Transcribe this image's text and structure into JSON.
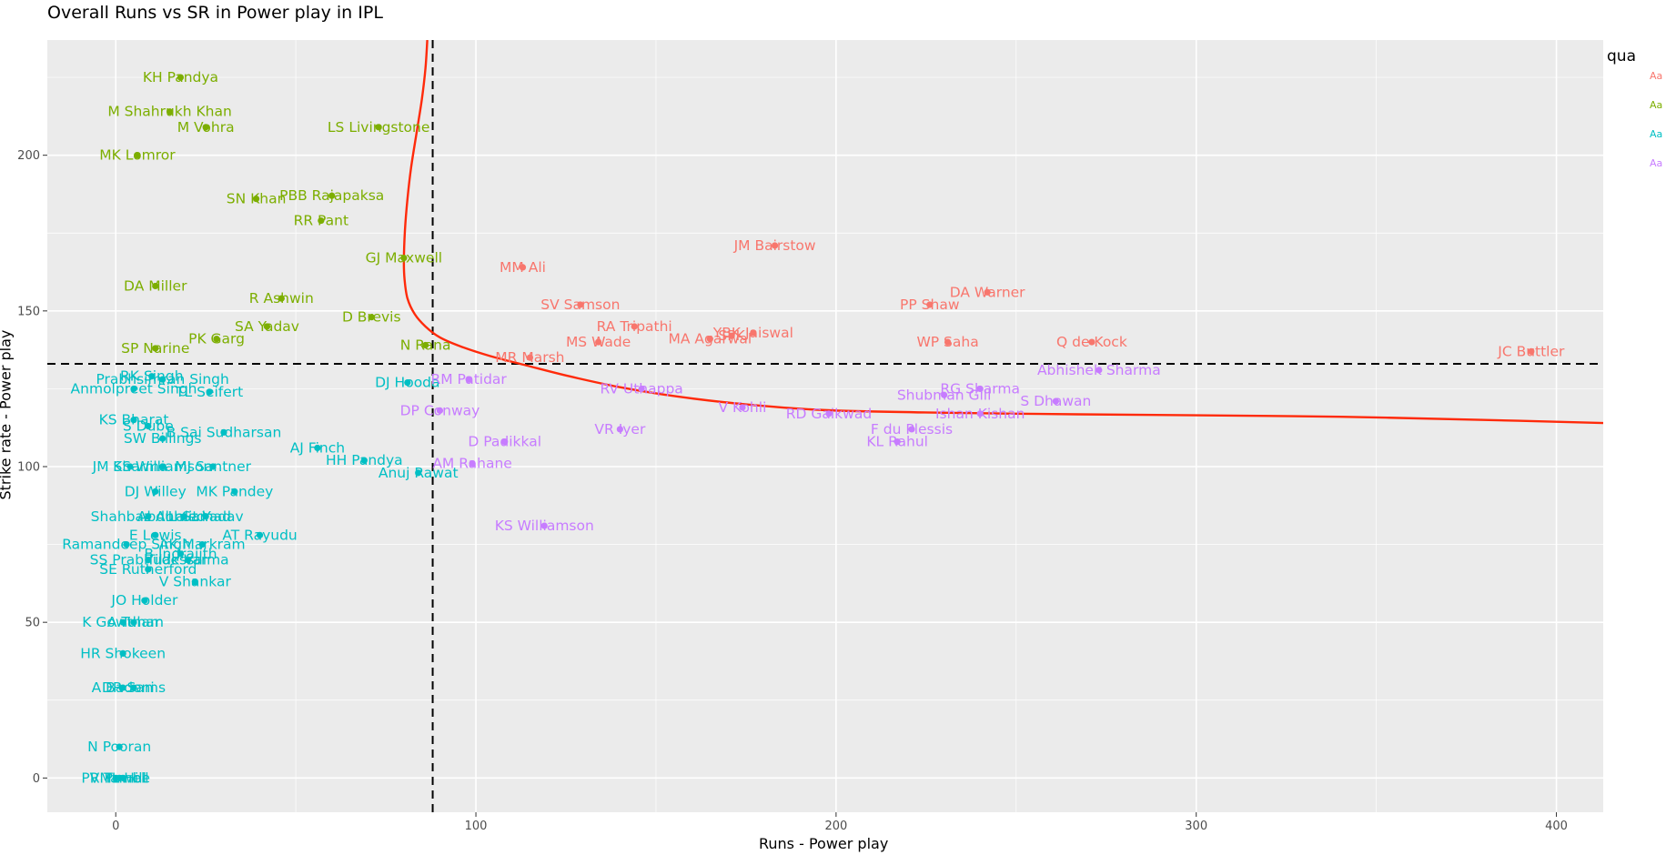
{
  "chart_data": {
    "type": "scatter",
    "title": "Overall Runs vs SR in Power play in IPL",
    "xlabel": "Runs - Power play",
    "ylabel": "Strike rate - Power play",
    "xlim": [
      -19,
      413
    ],
    "ylim": [
      -11,
      237
    ],
    "xticks": [
      0,
      100,
      200,
      300,
      400
    ],
    "yticks": [
      0,
      50,
      100,
      150,
      200
    ],
    "grid": true,
    "reference_lines": {
      "x": 88,
      "y": 133
    },
    "legend": {
      "title": "qua",
      "placement": "right",
      "key_text": "Aa"
    },
    "colors": {
      "q1": "#F8766D",
      "q2": "#7CAE00",
      "q3": "#00BFC4",
      "q4": "#C77CFF",
      "panel": "#EBEBEB",
      "smooth": "#FF2A0A"
    },
    "groups": [
      {
        "id": "q1",
        "points": [
          {
            "label": "JM Bairstow",
            "x": 183,
            "y": 171
          },
          {
            "label": "MM Ali",
            "x": 113,
            "y": 164
          },
          {
            "label": "DA Warner",
            "x": 242,
            "y": 156
          },
          {
            "label": "PP Shaw",
            "x": 226,
            "y": 152
          },
          {
            "label": "SV Samson",
            "x": 129,
            "y": 152
          },
          {
            "label": "RA Tripathi",
            "x": 144,
            "y": 145
          },
          {
            "label": "YBK Jaiswal",
            "x": 177,
            "y": 143
          },
          {
            "label": "SPK",
            "x": 171,
            "y": 142
          },
          {
            "label": "MS Wade",
            "x": 134,
            "y": 140
          },
          {
            "label": "MA Agarwal",
            "x": 165,
            "y": 141
          },
          {
            "label": "WP Saha",
            "x": 231,
            "y": 140
          },
          {
            "label": "Q de Kock",
            "x": 271,
            "y": 140
          },
          {
            "label": "JC Buttler",
            "x": 393,
            "y": 137
          },
          {
            "label": "MR Marsh",
            "x": 115,
            "y": 135
          }
        ]
      },
      {
        "id": "q2",
        "points": [
          {
            "label": "KH Pandya",
            "x": 18,
            "y": 225
          },
          {
            "label": "M Shahrukh Khan",
            "x": 15,
            "y": 214
          },
          {
            "label": "M Vohra",
            "x": 25,
            "y": 209
          },
          {
            "label": "LS Livingstone",
            "x": 73,
            "y": 209
          },
          {
            "label": "MK Lomror",
            "x": 6,
            "y": 200
          },
          {
            "label": "SN Khan",
            "x": 39,
            "y": 186
          },
          {
            "label": "PBB Rajapaksa",
            "x": 60,
            "y": 187
          },
          {
            "label": "RR Pant",
            "x": 57,
            "y": 179
          },
          {
            "label": "GJ Maxwell",
            "x": 80,
            "y": 167
          },
          {
            "label": "DA Miller",
            "x": 11,
            "y": 158
          },
          {
            "label": "R Ashwin",
            "x": 46,
            "y": 154
          },
          {
            "label": "D Brevis",
            "x": 71,
            "y": 148
          },
          {
            "label": "SA Yadav",
            "x": 42,
            "y": 145
          },
          {
            "label": "PK Garg",
            "x": 28,
            "y": 141
          },
          {
            "label": "SP Narine",
            "x": 11,
            "y": 138
          },
          {
            "label": "N Rana",
            "x": 86,
            "y": 139
          }
        ]
      },
      {
        "id": "q3",
        "points": [
          {
            "label": "RK Singh",
            "x": 10,
            "y": 129
          },
          {
            "label": "Prabhsimran Singh",
            "x": 13,
            "y": 128
          },
          {
            "label": "Anmolpreet Singh",
            "x": 5,
            "y": 125
          },
          {
            "label": "TL Seifert",
            "x": 26,
            "y": 124
          },
          {
            "label": "DJ Hooda",
            "x": 81,
            "y": 127
          },
          {
            "label": "KS Bharat",
            "x": 5,
            "y": 115
          },
          {
            "label": "S Dube",
            "x": 9,
            "y": 113
          },
          {
            "label": "B Sai Sudharsan",
            "x": 30,
            "y": 111
          },
          {
            "label": "SW Billings",
            "x": 13,
            "y": 109
          },
          {
            "label": "AJ Finch",
            "x": 56,
            "y": 106
          },
          {
            "label": "HH Pandya",
            "x": 69,
            "y": 102
          },
          {
            "label": "MJ Santner",
            "x": 27,
            "y": 100
          },
          {
            "label": "JM Sharma",
            "x": 4,
            "y": 100
          },
          {
            "label": "KS Williamson",
            "x": 13,
            "y": 100
          },
          {
            "label": "Anuj Rawat",
            "x": 84,
            "y": 98
          },
          {
            "label": "DJ Willey",
            "x": 11,
            "y": 92
          },
          {
            "label": "MK Pandey",
            "x": 33,
            "y": 92
          },
          {
            "label": "Shahbaz Ahmed",
            "x": 9,
            "y": 84
          },
          {
            "label": "Abdul Samad",
            "x": 19,
            "y": 84
          },
          {
            "label": "Lalit Yadav",
            "x": 25,
            "y": 84
          },
          {
            "label": "E Lewis",
            "x": 11,
            "y": 78
          },
          {
            "label": "AT Rayudu",
            "x": 40,
            "y": 78
          },
          {
            "label": "Ramandeep Singh",
            "x": 3,
            "y": 75
          },
          {
            "label": "AK Markram",
            "x": 24,
            "y": 75
          },
          {
            "label": "B Indrajith",
            "x": 18,
            "y": 72
          },
          {
            "label": "SS Prabhudessai",
            "x": 9,
            "y": 70
          },
          {
            "label": "Tilak Varma",
            "x": 20,
            "y": 70
          },
          {
            "label": "SE Rutherford",
            "x": 9,
            "y": 67
          },
          {
            "label": "V Shankar",
            "x": 22,
            "y": 63
          },
          {
            "label": "JO Holder",
            "x": 8,
            "y": 57
          },
          {
            "label": "K Gowtham",
            "x": 2,
            "y": 50
          },
          {
            "label": "A Tuhar",
            "x": 5,
            "y": 50
          },
          {
            "label": "HR Shokeen",
            "x": 2,
            "y": 40
          },
          {
            "label": "A Badoni",
            "x": 2,
            "y": 29
          },
          {
            "label": "DR Sams",
            "x": 5,
            "y": 29
          },
          {
            "label": "N Pooran",
            "x": 1,
            "y": 10
          },
          {
            "label": "PV Tambe",
            "x": 0,
            "y": 0
          },
          {
            "label": "R Powell",
            "x": 1,
            "y": 0
          },
          {
            "label": "ML Hill",
            "x": 2,
            "y": 0
          }
        ]
      },
      {
        "id": "q4",
        "points": [
          {
            "label": "RM Patidar",
            "x": 98,
            "y": 128
          },
          {
            "label": "Abhishek Sharma",
            "x": 273,
            "y": 131
          },
          {
            "label": "RV Uthappa",
            "x": 146,
            "y": 125
          },
          {
            "label": "RG Sharma",
            "x": 240,
            "y": 125
          },
          {
            "label": "Shubman Gill",
            "x": 230,
            "y": 123
          },
          {
            "label": "S Dhawan",
            "x": 261,
            "y": 121
          },
          {
            "label": "V Kohli",
            "x": 174,
            "y": 119
          },
          {
            "label": "DP Conway",
            "x": 90,
            "y": 118
          },
          {
            "label": "RD Gaikwad",
            "x": 198,
            "y": 117
          },
          {
            "label": "Ishan Kishan",
            "x": 240,
            "y": 117
          },
          {
            "label": "VR Iyer",
            "x": 140,
            "y": 112
          },
          {
            "label": "F du Plessis",
            "x": 221,
            "y": 112
          },
          {
            "label": "D Padikkal",
            "x": 108,
            "y": 108
          },
          {
            "label": "KL Rahul",
            "x": 217,
            "y": 108
          },
          {
            "label": "AM Rahane",
            "x": 99,
            "y": 101
          },
          {
            "label": "KS Williamson",
            "x": 119,
            "y": 81
          }
        ]
      }
    ],
    "smooth_curve": [
      [
        86.5,
        237
      ],
      [
        86,
        228
      ],
      [
        85,
        218
      ],
      [
        83.5,
        207
      ],
      [
        82,
        196
      ],
      [
        81,
        186
      ],
      [
        80.3,
        176
      ],
      [
        80,
        166
      ],
      [
        80.2,
        160
      ],
      [
        81,
        154
      ],
      [
        83,
        149
      ],
      [
        86,
        145
      ],
      [
        90,
        141.5
      ],
      [
        96,
        138.5
      ],
      [
        104,
        135.5
      ],
      [
        114,
        132.5
      ],
      [
        126,
        129
      ],
      [
        140,
        125.5
      ],
      [
        156,
        122.5
      ],
      [
        175,
        120
      ],
      [
        200,
        118
      ],
      [
        250,
        117
      ],
      [
        300,
        116.5
      ],
      [
        340,
        116
      ],
      [
        380,
        115
      ],
      [
        413,
        114
      ]
    ]
  }
}
